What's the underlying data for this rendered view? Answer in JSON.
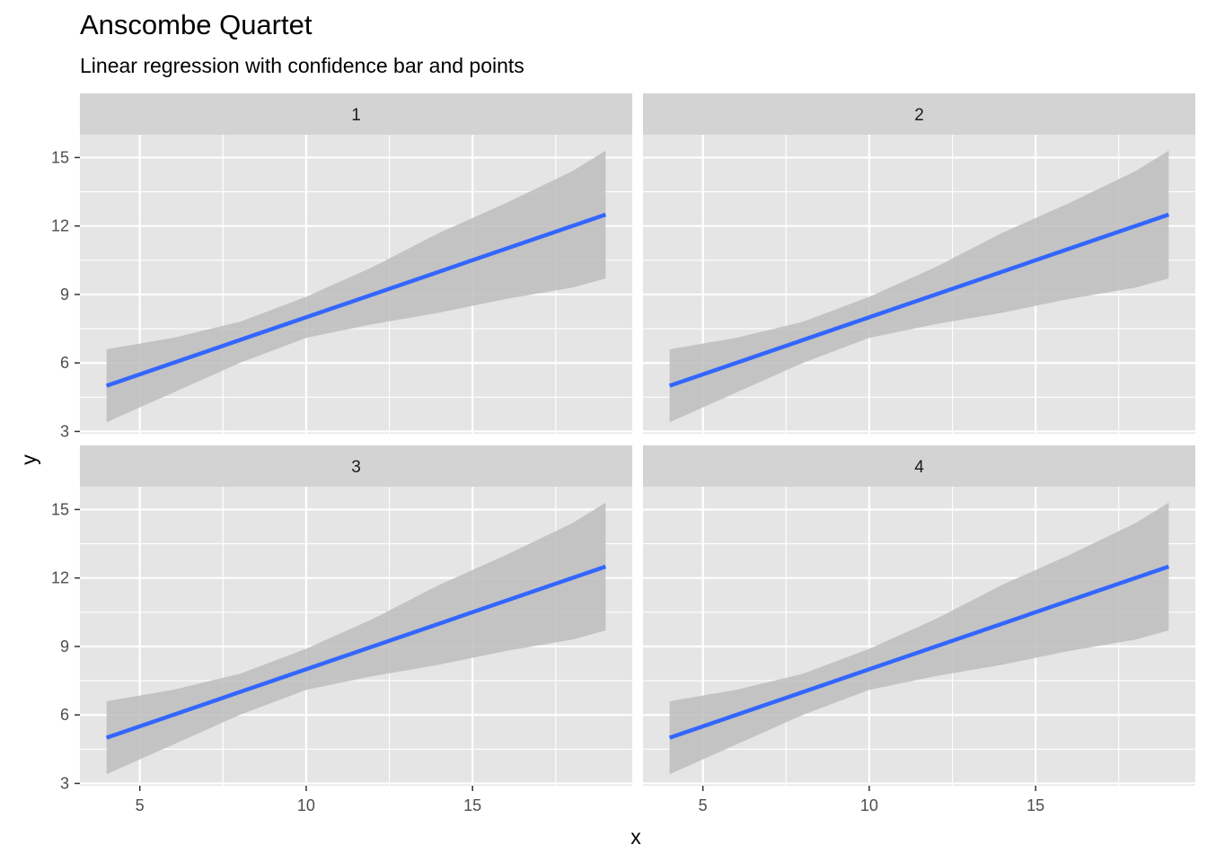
{
  "title": "Anscombe Quartet",
  "subtitle": "Linear regression with confidence bar and points",
  "chart_data": {
    "type": "line",
    "title": "Anscombe Quartet",
    "subtitle": "Linear regression with confidence bar and points",
    "xlabel": "x",
    "ylabel": "y",
    "xlim": [
      3.2,
      19.8
    ],
    "ylim": [
      2.9,
      16.0
    ],
    "x_ticks": [
      5,
      10,
      15
    ],
    "y_ticks": [
      3,
      6,
      9,
      12,
      15
    ],
    "grid": true,
    "facets": [
      {
        "label": "1",
        "fit_line": {
          "x": [
            4,
            19
          ],
          "y": [
            5.0,
            12.5
          ]
        },
        "confidence_band": {
          "x": [
            4,
            6,
            8,
            10,
            12,
            14,
            16,
            18,
            19
          ],
          "lower": [
            3.4,
            4.7,
            6.0,
            7.1,
            7.7,
            8.2,
            8.8,
            9.3,
            9.7
          ],
          "upper": [
            6.6,
            7.1,
            7.8,
            8.9,
            10.2,
            11.7,
            13.0,
            14.4,
            15.3
          ]
        }
      },
      {
        "label": "2",
        "fit_line": {
          "x": [
            4,
            19
          ],
          "y": [
            5.0,
            12.5
          ]
        },
        "confidence_band": {
          "x": [
            4,
            6,
            8,
            10,
            12,
            14,
            16,
            18,
            19
          ],
          "lower": [
            3.4,
            4.7,
            6.0,
            7.1,
            7.7,
            8.2,
            8.8,
            9.3,
            9.7
          ],
          "upper": [
            6.6,
            7.1,
            7.8,
            8.9,
            10.2,
            11.7,
            13.0,
            14.4,
            15.3
          ]
        }
      },
      {
        "label": "3",
        "fit_line": {
          "x": [
            4,
            19
          ],
          "y": [
            5.0,
            12.5
          ]
        },
        "confidence_band": {
          "x": [
            4,
            6,
            8,
            10,
            12,
            14,
            16,
            18,
            19
          ],
          "lower": [
            3.4,
            4.7,
            6.0,
            7.1,
            7.7,
            8.2,
            8.8,
            9.3,
            9.7
          ],
          "upper": [
            6.6,
            7.1,
            7.8,
            8.9,
            10.2,
            11.7,
            13.0,
            14.4,
            15.3
          ]
        }
      },
      {
        "label": "4",
        "fit_line": {
          "x": [
            4,
            19
          ],
          "y": [
            5.0,
            12.5
          ]
        },
        "confidence_band": {
          "x": [
            4,
            6,
            8,
            10,
            12,
            14,
            16,
            18,
            19
          ],
          "lower": [
            3.4,
            4.7,
            6.0,
            7.1,
            7.7,
            8.2,
            8.8,
            9.3,
            9.7
          ],
          "upper": [
            6.6,
            7.1,
            7.8,
            8.9,
            10.2,
            11.7,
            13.0,
            14.4,
            15.3
          ]
        }
      }
    ],
    "colors": {
      "line": "#3366FF",
      "band": "#BDBDBD",
      "panel_background": "#E5E5E5",
      "strip_background": "#D3D3D3",
      "grid": "#FFFFFF",
      "tick_text": "#4D4D4D"
    }
  }
}
